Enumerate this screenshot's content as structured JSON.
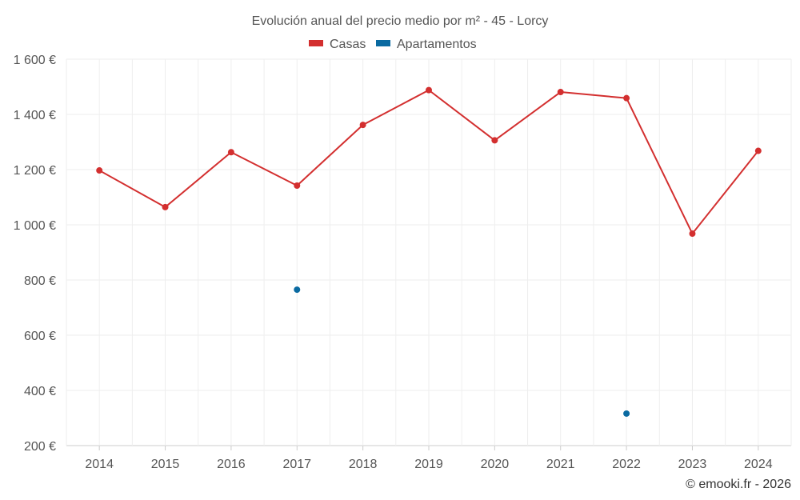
{
  "chart_data": {
    "type": "line",
    "title": "Evolución anual del precio medio por m² - 45 - Lorcy",
    "categories": [
      "2014",
      "2015",
      "2016",
      "2017",
      "2018",
      "2019",
      "2020",
      "2021",
      "2022",
      "2023",
      "2024"
    ],
    "series": [
      {
        "name": "Casas",
        "color": "#d32f2f",
        "values": [
          1197,
          1064,
          1263,
          1142,
          1362,
          1488,
          1306,
          1481,
          1459,
          968,
          1268
        ]
      },
      {
        "name": "Apartamentos",
        "color": "#0a6aa1",
        "values": [
          null,
          null,
          null,
          765,
          null,
          null,
          null,
          null,
          316,
          null,
          null
        ]
      }
    ],
    "y_ticks": [
      200,
      400,
      600,
      800,
      1000,
      1200,
      1400,
      1600
    ],
    "y_tick_labels": [
      "200 €",
      "400 €",
      "600 €",
      "800 €",
      "1 000 €",
      "1 200 €",
      "1 400 €",
      "1 600 €"
    ],
    "ylim": [
      200,
      1600
    ],
    "xlabel": "",
    "ylabel": "",
    "grid": true,
    "legend_position": "top-center"
  },
  "credit": "© emooki.fr - 2026"
}
